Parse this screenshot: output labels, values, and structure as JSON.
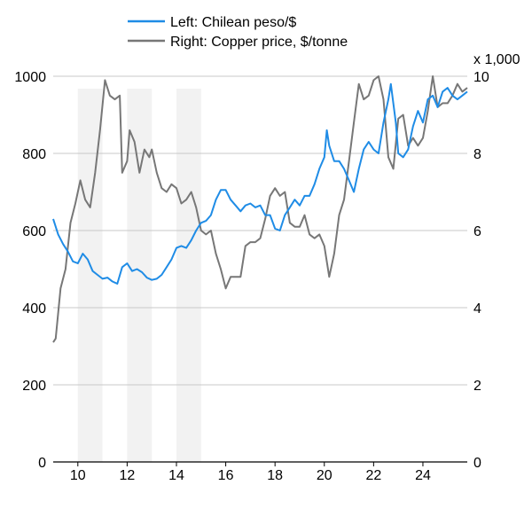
{
  "chart_data": {
    "type": "line",
    "title": "",
    "x_axis": {
      "range": [
        2009,
        2025.8
      ],
      "ticks": [
        {
          "x": 2010,
          "label": "10"
        },
        {
          "x": 2012,
          "label": "12"
        },
        {
          "x": 2014,
          "label": "14"
        },
        {
          "x": 2016,
          "label": "16"
        },
        {
          "x": 2018,
          "label": "18"
        },
        {
          "x": 2020,
          "label": "20"
        },
        {
          "x": 2022,
          "label": "22"
        },
        {
          "x": 2024,
          "label": "24"
        }
      ]
    },
    "y_left": {
      "range": [
        0,
        1000
      ],
      "ticks": [
        {
          "v": 0,
          "label": "0"
        },
        {
          "v": 200,
          "label": "200"
        },
        {
          "v": 400,
          "label": "400"
        },
        {
          "v": 600,
          "label": "600"
        },
        {
          "v": 800,
          "label": "800"
        },
        {
          "v": 1000,
          "label": "1000"
        }
      ]
    },
    "y_right": {
      "range": [
        0,
        10000
      ],
      "multiplier_label": "x 1,000",
      "ticks": [
        {
          "v": 0,
          "label": "0"
        },
        {
          "v": 2000,
          "label": "2"
        },
        {
          "v": 4000,
          "label": "4"
        },
        {
          "v": 6000,
          "label": "6"
        },
        {
          "v": 8000,
          "label": "8"
        },
        {
          "v": 10000,
          "label": "10"
        }
      ]
    },
    "grid": "horizontal",
    "legend_position": "top-center",
    "shaded_periods": [
      [
        2010,
        2011
      ],
      [
        2012,
        2013
      ],
      [
        2014,
        2015
      ]
    ],
    "series": [
      {
        "name": "Left: Chilean peso/$",
        "axis": "left",
        "color": "#1f8ce6",
        "points": [
          [
            2009.0,
            630
          ],
          [
            2009.2,
            590
          ],
          [
            2009.4,
            565
          ],
          [
            2009.6,
            545
          ],
          [
            2009.8,
            520
          ],
          [
            2010.0,
            515
          ],
          [
            2010.2,
            540
          ],
          [
            2010.4,
            525
          ],
          [
            2010.6,
            495
          ],
          [
            2010.8,
            485
          ],
          [
            2011.0,
            475
          ],
          [
            2011.2,
            478
          ],
          [
            2011.4,
            468
          ],
          [
            2011.6,
            462
          ],
          [
            2011.8,
            505
          ],
          [
            2012.0,
            515
          ],
          [
            2012.2,
            495
          ],
          [
            2012.4,
            500
          ],
          [
            2012.6,
            492
          ],
          [
            2012.8,
            478
          ],
          [
            2013.0,
            472
          ],
          [
            2013.2,
            475
          ],
          [
            2013.4,
            485
          ],
          [
            2013.6,
            505
          ],
          [
            2013.8,
            525
          ],
          [
            2014.0,
            555
          ],
          [
            2014.2,
            560
          ],
          [
            2014.4,
            555
          ],
          [
            2014.6,
            575
          ],
          [
            2014.8,
            600
          ],
          [
            2015.0,
            620
          ],
          [
            2015.2,
            625
          ],
          [
            2015.4,
            640
          ],
          [
            2015.6,
            680
          ],
          [
            2015.8,
            705
          ],
          [
            2016.0,
            705
          ],
          [
            2016.2,
            680
          ],
          [
            2016.4,
            665
          ],
          [
            2016.6,
            650
          ],
          [
            2016.8,
            665
          ],
          [
            2017.0,
            670
          ],
          [
            2017.2,
            660
          ],
          [
            2017.4,
            665
          ],
          [
            2017.6,
            640
          ],
          [
            2017.8,
            640
          ],
          [
            2018.0,
            605
          ],
          [
            2018.2,
            600
          ],
          [
            2018.4,
            640
          ],
          [
            2018.6,
            660
          ],
          [
            2018.8,
            680
          ],
          [
            2019.0,
            665
          ],
          [
            2019.2,
            690
          ],
          [
            2019.4,
            690
          ],
          [
            2019.6,
            720
          ],
          [
            2019.8,
            760
          ],
          [
            2020.0,
            790
          ],
          [
            2020.1,
            860
          ],
          [
            2020.2,
            820
          ],
          [
            2020.4,
            780
          ],
          [
            2020.6,
            780
          ],
          [
            2020.8,
            760
          ],
          [
            2021.0,
            730
          ],
          [
            2021.2,
            700
          ],
          [
            2021.4,
            760
          ],
          [
            2021.6,
            810
          ],
          [
            2021.8,
            830
          ],
          [
            2022.0,
            810
          ],
          [
            2022.2,
            800
          ],
          [
            2022.4,
            880
          ],
          [
            2022.6,
            940
          ],
          [
            2022.7,
            980
          ],
          [
            2022.9,
            880
          ],
          [
            2023.0,
            800
          ],
          [
            2023.2,
            790
          ],
          [
            2023.4,
            810
          ],
          [
            2023.6,
            870
          ],
          [
            2023.8,
            910
          ],
          [
            2024.0,
            880
          ],
          [
            2024.2,
            940
          ],
          [
            2024.4,
            950
          ],
          [
            2024.6,
            920
          ],
          [
            2024.8,
            960
          ],
          [
            2025.0,
            970
          ],
          [
            2025.2,
            950
          ],
          [
            2025.4,
            940
          ],
          [
            2025.6,
            950
          ],
          [
            2025.8,
            960
          ]
        ]
      },
      {
        "name": "Right: Copper price, $/tonne",
        "axis": "right",
        "color": "#777777",
        "points": [
          [
            2009.0,
            3100
          ],
          [
            2009.1,
            3200
          ],
          [
            2009.3,
            4500
          ],
          [
            2009.5,
            5000
          ],
          [
            2009.7,
            6200
          ],
          [
            2009.9,
            6700
          ],
          [
            2010.1,
            7300
          ],
          [
            2010.3,
            6800
          ],
          [
            2010.5,
            6600
          ],
          [
            2010.7,
            7500
          ],
          [
            2010.9,
            8600
          ],
          [
            2011.1,
            9900
          ],
          [
            2011.3,
            9500
          ],
          [
            2011.5,
            9400
          ],
          [
            2011.7,
            9500
          ],
          [
            2011.8,
            7500
          ],
          [
            2012.0,
            7800
          ],
          [
            2012.1,
            8600
          ],
          [
            2012.3,
            8300
          ],
          [
            2012.5,
            7500
          ],
          [
            2012.7,
            8100
          ],
          [
            2012.9,
            7900
          ],
          [
            2013.0,
            8100
          ],
          [
            2013.2,
            7500
          ],
          [
            2013.4,
            7100
          ],
          [
            2013.6,
            7000
          ],
          [
            2013.8,
            7200
          ],
          [
            2014.0,
            7100
          ],
          [
            2014.2,
            6700
          ],
          [
            2014.4,
            6800
          ],
          [
            2014.6,
            7000
          ],
          [
            2014.8,
            6600
          ],
          [
            2015.0,
            6000
          ],
          [
            2015.2,
            5900
          ],
          [
            2015.4,
            6000
          ],
          [
            2015.6,
            5400
          ],
          [
            2015.8,
            5000
          ],
          [
            2016.0,
            4500
          ],
          [
            2016.2,
            4800
          ],
          [
            2016.4,
            4800
          ],
          [
            2016.6,
            4800
          ],
          [
            2016.8,
            5600
          ],
          [
            2017.0,
            5700
          ],
          [
            2017.2,
            5700
          ],
          [
            2017.4,
            5800
          ],
          [
            2017.6,
            6300
          ],
          [
            2017.8,
            6900
          ],
          [
            2018.0,
            7100
          ],
          [
            2018.2,
            6900
          ],
          [
            2018.4,
            7000
          ],
          [
            2018.6,
            6200
          ],
          [
            2018.8,
            6100
          ],
          [
            2019.0,
            6100
          ],
          [
            2019.2,
            6400
          ],
          [
            2019.4,
            5900
          ],
          [
            2019.6,
            5800
          ],
          [
            2019.8,
            5900
          ],
          [
            2020.0,
            5600
          ],
          [
            2020.2,
            4800
          ],
          [
            2020.4,
            5400
          ],
          [
            2020.6,
            6400
          ],
          [
            2020.8,
            6800
          ],
          [
            2021.0,
            7800
          ],
          [
            2021.2,
            8800
          ],
          [
            2021.4,
            9800
          ],
          [
            2021.6,
            9400
          ],
          [
            2021.8,
            9500
          ],
          [
            2022.0,
            9900
          ],
          [
            2022.2,
            10000
          ],
          [
            2022.4,
            9400
          ],
          [
            2022.6,
            7900
          ],
          [
            2022.8,
            7600
          ],
          [
            2023.0,
            8900
          ],
          [
            2023.2,
            9000
          ],
          [
            2023.4,
            8200
          ],
          [
            2023.6,
            8400
          ],
          [
            2023.8,
            8200
          ],
          [
            2024.0,
            8400
          ],
          [
            2024.2,
            9100
          ],
          [
            2024.4,
            10000
          ],
          [
            2024.6,
            9200
          ],
          [
            2024.8,
            9300
          ],
          [
            2025.0,
            9300
          ],
          [
            2025.2,
            9500
          ],
          [
            2025.4,
            9800
          ],
          [
            2025.6,
            9600
          ],
          [
            2025.8,
            9700
          ]
        ]
      }
    ]
  }
}
